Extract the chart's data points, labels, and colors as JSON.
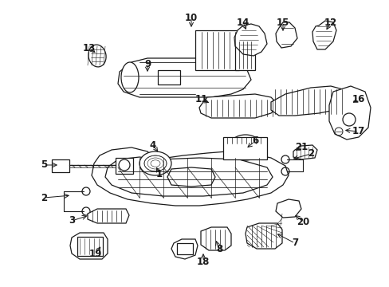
{
  "bg_color": "#ffffff",
  "line_color": "#1a1a1a",
  "fig_width": 4.89,
  "fig_height": 3.6,
  "dpi": 100,
  "arrows": [
    [
      "1",
      200,
      218,
      195,
      207
    ],
    [
      "2",
      55,
      248,
      90,
      245
    ],
    [
      "2",
      390,
      193,
      365,
      200
    ],
    [
      "3",
      90,
      277,
      112,
      270
    ],
    [
      "4",
      192,
      182,
      200,
      193
    ],
    [
      "5",
      55,
      207,
      75,
      207
    ],
    [
      "6",
      320,
      177,
      308,
      187
    ],
    [
      "7",
      370,
      305,
      345,
      292
    ],
    [
      "8",
      275,
      313,
      270,
      299
    ],
    [
      "9",
      185,
      80,
      185,
      93
    ],
    [
      "10",
      240,
      22,
      240,
      37
    ],
    [
      "11",
      253,
      125,
      265,
      130
    ],
    [
      "12",
      415,
      28,
      408,
      40
    ],
    [
      "13",
      112,
      60,
      122,
      68
    ],
    [
      "14",
      305,
      28,
      310,
      40
    ],
    [
      "15",
      355,
      28,
      355,
      42
    ],
    [
      "16",
      450,
      125,
      440,
      130
    ],
    [
      "17",
      450,
      165,
      430,
      163
    ],
    [
      "18",
      255,
      328,
      255,
      315
    ],
    [
      "19",
      120,
      318,
      128,
      307
    ],
    [
      "20",
      380,
      278,
      368,
      268
    ],
    [
      "21",
      378,
      185,
      368,
      190
    ]
  ]
}
